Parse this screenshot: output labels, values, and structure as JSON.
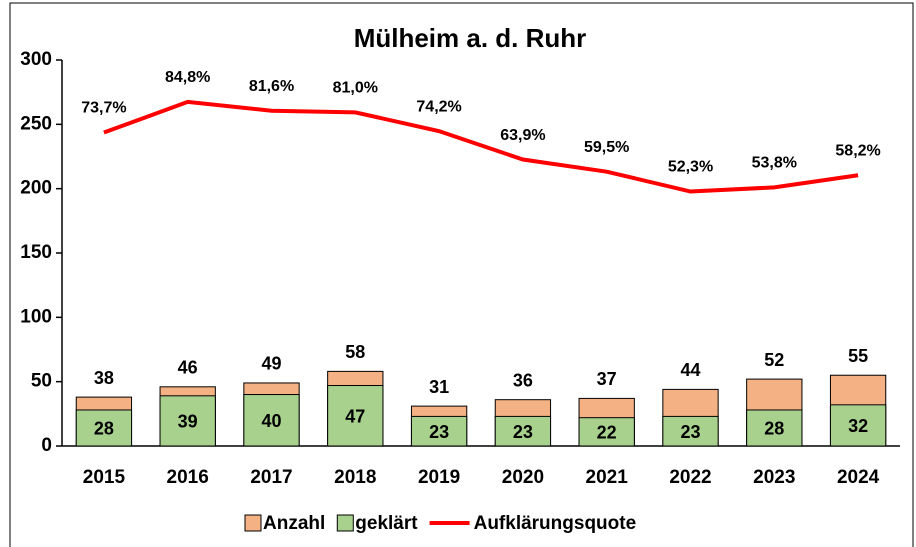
{
  "chart_data": {
    "type": "bar",
    "title": "Mülheim a. d. Ruhr",
    "categories": [
      "2015",
      "2016",
      "2017",
      "2018",
      "2019",
      "2020",
      "2021",
      "2022",
      "2023",
      "2024"
    ],
    "series": [
      {
        "name": "Anzahl",
        "color": "#f4b183",
        "values": [
          38,
          46,
          49,
          58,
          31,
          36,
          37,
          44,
          52,
          55
        ]
      },
      {
        "name": "geklärt",
        "color": "#a9d18e",
        "values": [
          28,
          39,
          40,
          47,
          23,
          23,
          22,
          23,
          28,
          32
        ]
      },
      {
        "name": "Aufklärungsquote",
        "type": "line",
        "color": "#ff0000",
        "axis": "y2",
        "values": [
          73.7,
          84.8,
          81.6,
          81.0,
          74.2,
          63.9,
          59.5,
          52.3,
          53.8,
          58.2
        ],
        "value_labels": [
          "73,7%",
          "84,8%",
          "81,6%",
          "81,0%",
          "74,2%",
          "63,9%",
          "59,5%",
          "52,3%",
          "53,8%",
          "58,2%"
        ]
      }
    ],
    "ylim": [
      0,
      300
    ],
    "yticks": [
      0,
      50,
      100,
      150,
      200,
      250,
      300
    ],
    "y2lim": [
      -40,
      100
    ],
    "legend": "bottom"
  }
}
